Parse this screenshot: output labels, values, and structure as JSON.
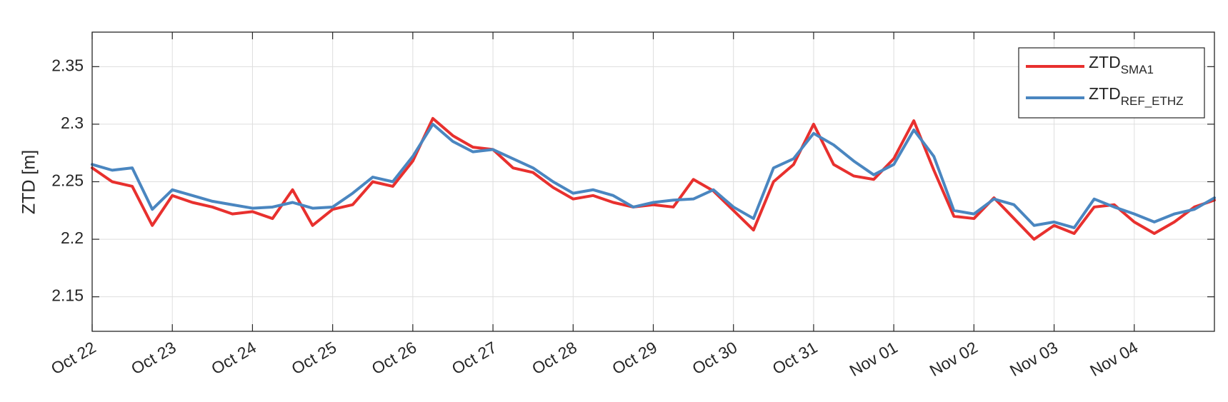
{
  "chart_data": {
    "type": "line",
    "ylabel": "ZTD [m]",
    "x": [
      0,
      0.25,
      0.5,
      0.75,
      1,
      1.25,
      1.5,
      1.75,
      2,
      2.25,
      2.5,
      2.75,
      3,
      3.25,
      3.5,
      3.75,
      4,
      4.25,
      4.5,
      4.75,
      5,
      5.25,
      5.5,
      5.75,
      6,
      6.25,
      6.5,
      6.75,
      7,
      7.25,
      7.5,
      7.75,
      8,
      8.25,
      8.5,
      8.75,
      9,
      9.25,
      9.5,
      9.75,
      10,
      10.25,
      10.5,
      10.75,
      11,
      11.25,
      11.5,
      11.75,
      12,
      12.25,
      12.5,
      12.75,
      13,
      13.25,
      13.5,
      13.75,
      14
    ],
    "series": [
      {
        "name": "ZTD",
        "name_sub": "SMA1",
        "color": "#e8302e",
        "values": [
          2.262,
          2.25,
          2.246,
          2.212,
          2.238,
          2.232,
          2.228,
          2.222,
          2.224,
          2.218,
          2.243,
          2.212,
          2.226,
          2.23,
          2.25,
          2.246,
          2.268,
          2.305,
          2.29,
          2.28,
          2.278,
          2.262,
          2.258,
          2.245,
          2.235,
          2.238,
          2.232,
          2.228,
          2.23,
          2.228,
          2.252,
          2.242,
          2.225,
          2.208,
          2.25,
          2.265,
          2.3,
          2.265,
          2.255,
          2.252,
          2.27,
          2.303,
          2.26,
          2.22,
          2.218,
          2.236,
          2.218,
          2.2,
          2.212,
          2.205,
          2.228,
          2.23,
          2.215,
          2.205,
          2.215,
          2.228,
          2.234
        ]
      },
      {
        "name": "ZTD",
        "name_sub": "REF_ETHZ",
        "color": "#4a86c0",
        "values": [
          2.265,
          2.26,
          2.262,
          2.226,
          2.243,
          2.238,
          2.233,
          2.23,
          2.227,
          2.228,
          2.232,
          2.227,
          2.228,
          2.24,
          2.254,
          2.25,
          2.272,
          2.3,
          2.285,
          2.276,
          2.278,
          2.27,
          2.262,
          2.25,
          2.24,
          2.243,
          2.238,
          2.228,
          2.232,
          2.234,
          2.235,
          2.243,
          2.228,
          2.218,
          2.262,
          2.27,
          2.292,
          2.282,
          2.268,
          2.256,
          2.265,
          2.295,
          2.272,
          2.225,
          2.222,
          2.235,
          2.23,
          2.212,
          2.215,
          2.21,
          2.235,
          2.228,
          2.222,
          2.215,
          2.222,
          2.226,
          2.236
        ]
      }
    ],
    "xlim": [
      0,
      14
    ],
    "xticks": [
      {
        "value": 0,
        "label": "Oct 22"
      },
      {
        "value": 1,
        "label": "Oct 23"
      },
      {
        "value": 2,
        "label": "Oct 24"
      },
      {
        "value": 3,
        "label": "Oct 25"
      },
      {
        "value": 4,
        "label": "Oct 26"
      },
      {
        "value": 5,
        "label": "Oct 27"
      },
      {
        "value": 6,
        "label": "Oct 28"
      },
      {
        "value": 7,
        "label": "Oct 29"
      },
      {
        "value": 8,
        "label": "Oct 30"
      },
      {
        "value": 9,
        "label": "Oct 31"
      },
      {
        "value": 10,
        "label": "Nov 01"
      },
      {
        "value": 11,
        "label": "Nov 02"
      },
      {
        "value": 12,
        "label": "Nov 03"
      },
      {
        "value": 13,
        "label": "Nov 04"
      }
    ],
    "ylim": [
      2.12,
      2.38
    ],
    "yticks": [
      2.15,
      2.2,
      2.25,
      2.3,
      2.35
    ],
    "grid": true,
    "legend": "upper right"
  }
}
